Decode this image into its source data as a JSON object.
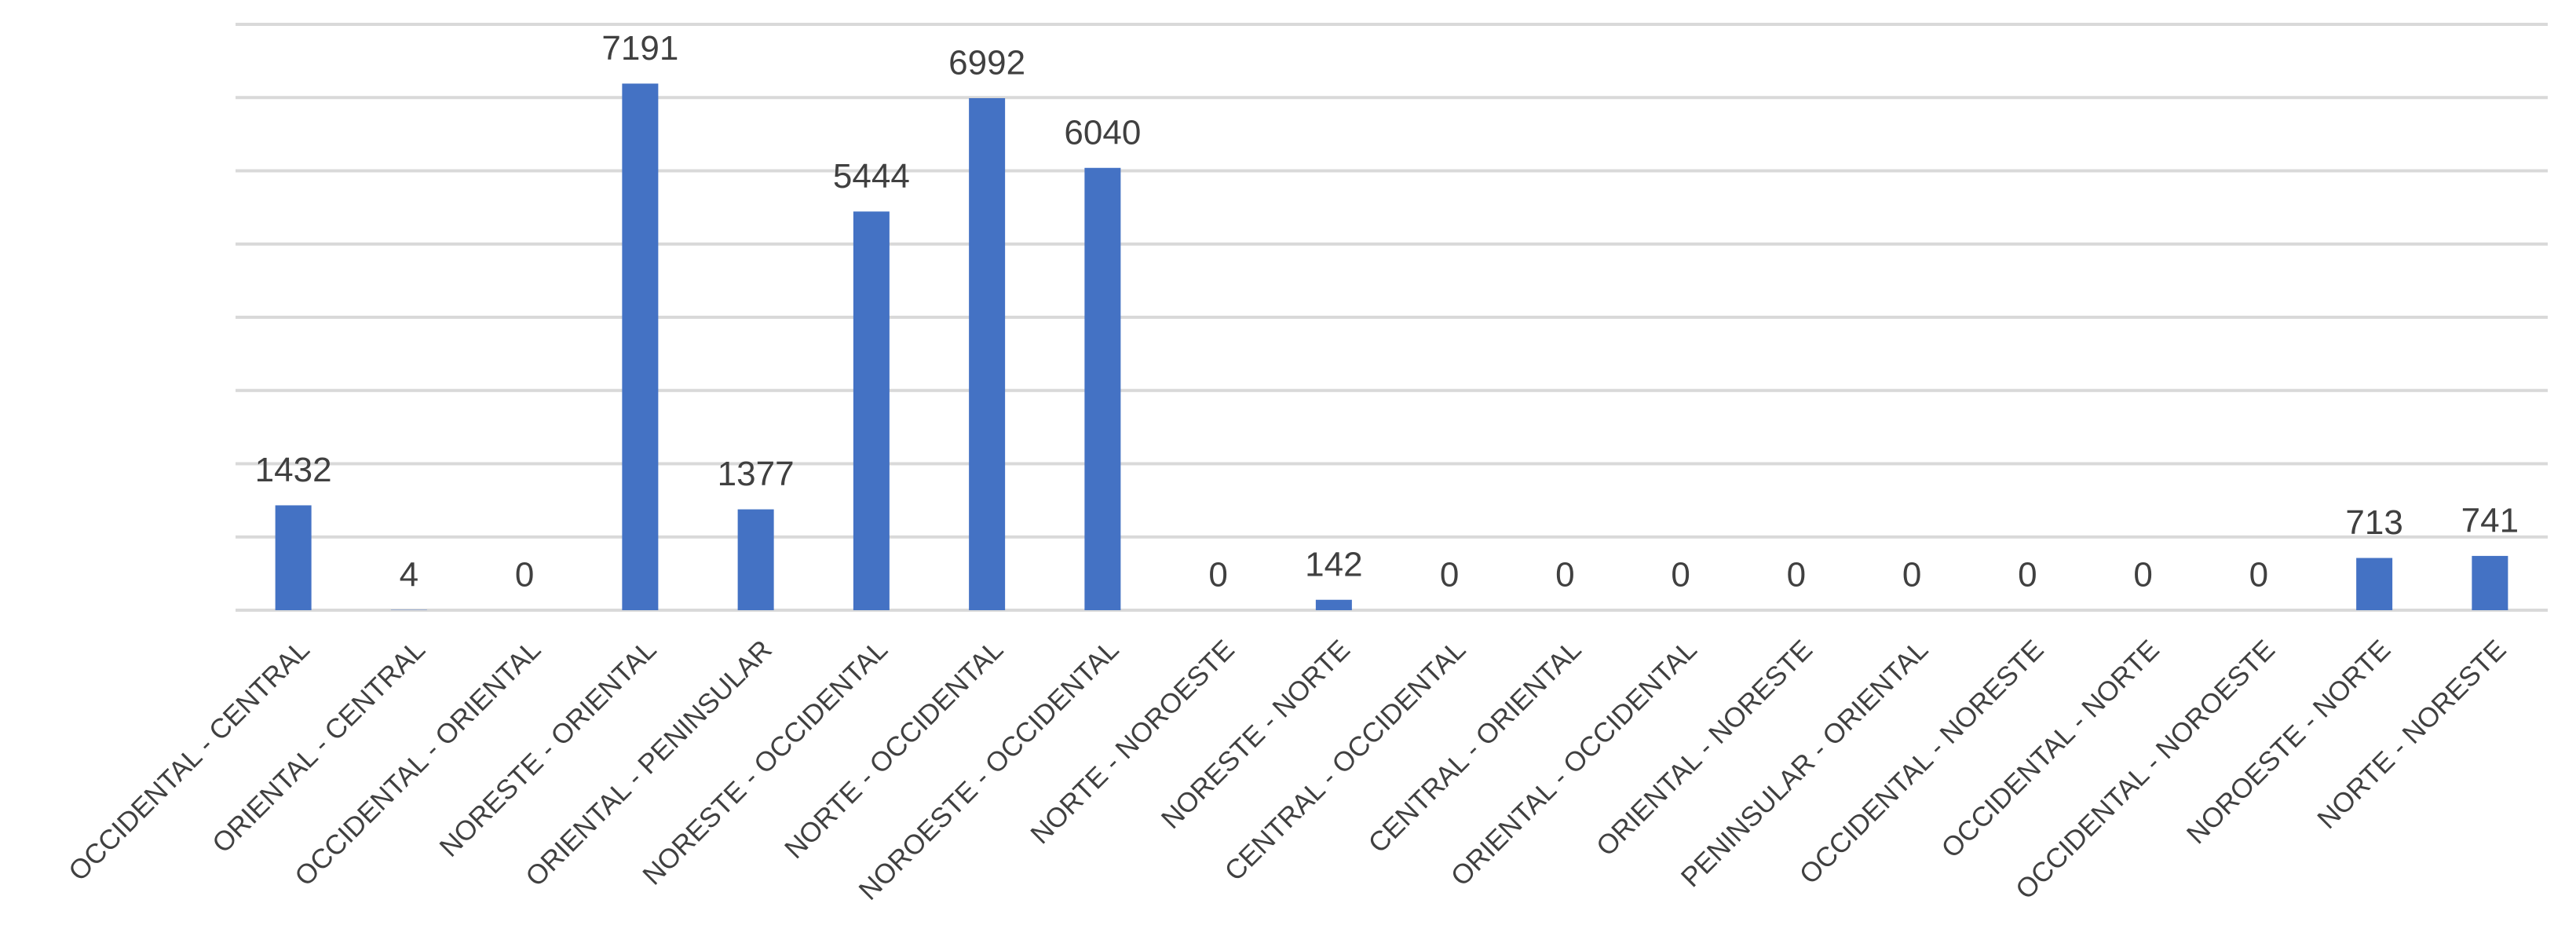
{
  "chart_data": {
    "type": "bar",
    "categories": [
      "OCCIDENTAL - CENTRAL",
      "ORIENTAL - CENTRAL",
      "OCCIDENTAL - ORIENTAL",
      "NORESTE - ORIENTAL",
      "ORIENTAL - PENINSULAR",
      "NORESTE - OCCIDENTAL",
      "NORTE - OCCIDENTAL",
      "NOROESTE - OCCIDENTAL",
      "NORTE - NOROESTE",
      "NORESTE - NORTE",
      "CENTRAL - OCCIDENTAL",
      "CENTRAL - ORIENTAL",
      "ORIENTAL - OCCIDENTAL",
      "ORIENTAL - NORESTE",
      "PENINSULAR - ORIENTAL",
      "OCCIDENTAL - NORESTE",
      "OCCIDENTAL - NORTE",
      "OCCIDENTAL - NOROESTE",
      "NOROESTE - NORTE",
      "NORTE - NORESTE"
    ],
    "values": [
      1432,
      4,
      0,
      7191,
      1377,
      5444,
      6992,
      6040,
      0,
      142,
      0,
      0,
      0,
      0,
      0,
      0,
      0,
      0,
      713,
      741
    ],
    "color": "#4472c4",
    "ylim": [
      0,
      8000
    ],
    "yticks": [
      0,
      1000,
      2000,
      3000,
      4000,
      5000,
      6000,
      7000,
      8000
    ],
    "grid": true
  }
}
